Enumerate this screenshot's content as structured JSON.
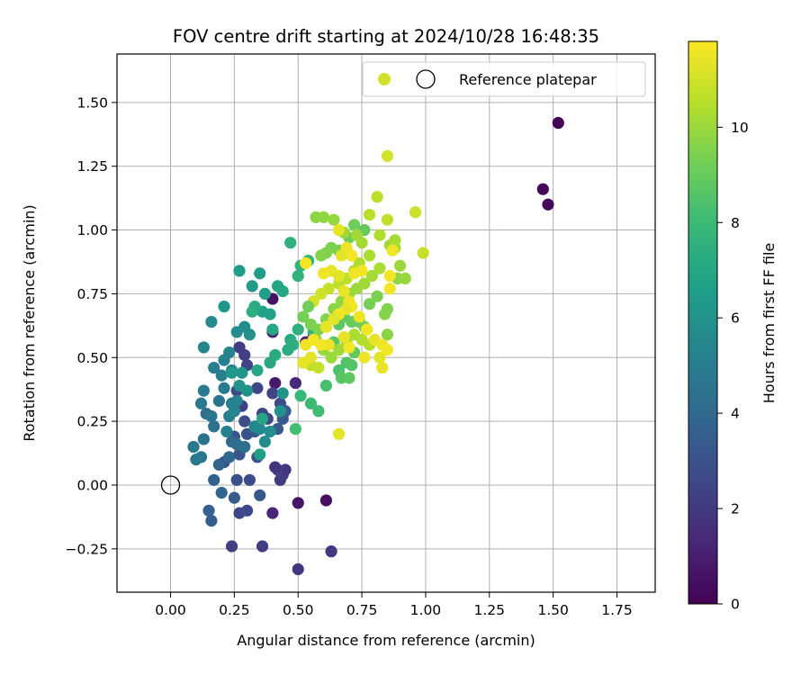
{
  "chart_data": {
    "type": "scatter",
    "title": "FOV centre drift starting at 2024/10/28 16:48:35",
    "xlabel": "Angular distance from reference (arcmin)",
    "ylabel": "Rotation from reference (arcmin)",
    "xlim": [
      -0.21,
      1.9
    ],
    "ylim": [
      -0.42,
      1.69
    ],
    "xticks": [
      "0.00",
      "0.25",
      "0.50",
      "0.75",
      "1.00",
      "1.25",
      "1.50",
      "1.75"
    ],
    "xtick_values": [
      0,
      0.25,
      0.5,
      0.75,
      1.0,
      1.25,
      1.5,
      1.75
    ],
    "yticks": [
      "−0.25",
      "0.00",
      "0.25",
      "0.50",
      "0.75",
      "1.00",
      "1.25",
      "1.50"
    ],
    "ytick_values": [
      -0.25,
      0,
      0.25,
      0.5,
      0.75,
      1.0,
      1.25,
      1.5
    ],
    "grid": true,
    "legend_position": "top-right",
    "colormap": "viridis",
    "colorbar": {
      "label": "Hours from first FF file",
      "min": 0,
      "max": 11.8,
      "ticks": [
        "0",
        "2",
        "4",
        "6",
        "8",
        "10"
      ],
      "tick_values": [
        0,
        2,
        4,
        6,
        8,
        10
      ]
    },
    "reference_point": {
      "label": "Reference platepar",
      "x": 0.0,
      "y": 0.0
    },
    "series": [
      {
        "points": [
          [
            1.52,
            1.42,
            0.1
          ],
          [
            1.46,
            1.16,
            0.2
          ],
          [
            1.48,
            1.1,
            0.3
          ],
          [
            0.61,
            -0.06,
            0.5
          ],
          [
            0.5,
            -0.07,
            0.7
          ],
          [
            0.4,
            0.73,
            0.6
          ],
          [
            0.41,
            0.4,
            0.8
          ],
          [
            0.56,
            0.58,
            0.9
          ],
          [
            0.53,
            0.56,
            1.0
          ],
          [
            0.4,
            -0.11,
            1.2
          ],
          [
            0.4,
            0.6,
            1.1
          ],
          [
            0.49,
            0.4,
            1.3
          ],
          [
            0.5,
            -0.33,
            1.9
          ],
          [
            0.63,
            -0.26,
            2.0
          ],
          [
            0.36,
            -0.24,
            2.1
          ],
          [
            0.24,
            -0.24,
            2.2
          ],
          [
            0.43,
            0.02,
            2.0
          ],
          [
            0.44,
            0.04,
            2.1
          ],
          [
            0.45,
            0.06,
            1.9
          ],
          [
            0.42,
            0.06,
            2.3
          ],
          [
            0.41,
            0.07,
            1.8
          ],
          [
            0.27,
            0.54,
            2.1
          ],
          [
            0.29,
            0.51,
            2.2
          ],
          [
            0.3,
            0.47,
            2.4
          ],
          [
            0.34,
            0.38,
            2.5
          ],
          [
            0.26,
            0.37,
            2.6
          ],
          [
            0.28,
            0.31,
            2.3
          ],
          [
            0.36,
            0.28,
            2.5
          ],
          [
            0.4,
            0.36,
            2.4
          ],
          [
            0.43,
            0.32,
            2.7
          ],
          [
            0.38,
            0.26,
            2.6
          ],
          [
            0.29,
            0.25,
            2.8
          ],
          [
            0.27,
            -0.11,
            2.5
          ],
          [
            0.3,
            -0.1,
            2.6
          ],
          [
            0.31,
            0.02,
            2.7
          ],
          [
            0.26,
            0.02,
            2.9
          ],
          [
            0.21,
            0.09,
            3.0
          ],
          [
            0.27,
            0.12,
            3.1
          ],
          [
            0.34,
            0.11,
            2.9
          ],
          [
            0.3,
            0.2,
            3.0
          ],
          [
            0.25,
            0.19,
            3.1
          ],
          [
            0.33,
            0.21,
            3.2
          ],
          [
            0.42,
            0.22,
            3.3
          ],
          [
            0.44,
            0.26,
            3.2
          ],
          [
            0.45,
            0.29,
            3.4
          ],
          [
            0.35,
            -0.04,
            3.3
          ],
          [
            0.25,
            -0.05,
            3.4
          ],
          [
            0.16,
            -0.14,
            3.5
          ],
          [
            0.15,
            -0.1,
            3.6
          ],
          [
            0.17,
            0.02,
            3.7
          ],
          [
            0.19,
            0.08,
            3.8
          ],
          [
            0.2,
            -0.03,
            3.9
          ],
          [
            0.23,
            0.11,
            4.0
          ],
          [
            0.24,
            0.17,
            4.1
          ],
          [
            0.26,
            0.16,
            4.2
          ],
          [
            0.29,
            0.15,
            4.3
          ],
          [
            0.13,
            0.18,
            4.4
          ],
          [
            0.12,
            0.11,
            4.6
          ],
          [
            0.1,
            0.1,
            4.8
          ],
          [
            0.09,
            0.15,
            4.7
          ],
          [
            0.14,
            0.28,
            4.3
          ],
          [
            0.16,
            0.27,
            4.5
          ],
          [
            0.17,
            0.23,
            4.4
          ],
          [
            0.19,
            0.33,
            4.5
          ],
          [
            0.12,
            0.32,
            4.7
          ],
          [
            0.13,
            0.37,
            4.8
          ],
          [
            0.21,
            0.38,
            4.9
          ],
          [
            0.24,
            0.32,
            5.0
          ],
          [
            0.23,
            0.27,
            5.1
          ],
          [
            0.22,
            0.21,
            5.2
          ],
          [
            0.26,
            0.33,
            5.3
          ],
          [
            0.25,
            0.29,
            5.4
          ],
          [
            0.17,
            0.46,
            5.0
          ],
          [
            0.2,
            0.43,
            5.1
          ],
          [
            0.21,
            0.49,
            5.2
          ],
          [
            0.23,
            0.52,
            5.3
          ],
          [
            0.24,
            0.45,
            5.4
          ],
          [
            0.13,
            0.54,
            5.5
          ],
          [
            0.16,
            0.64,
            5.6
          ],
          [
            0.26,
            0.6,
            5.7
          ],
          [
            0.29,
            0.62,
            5.8
          ],
          [
            0.31,
            0.59,
            5.9
          ],
          [
            0.33,
            0.23,
            5.5
          ],
          [
            0.35,
            0.22,
            5.6
          ],
          [
            0.37,
            0.17,
            5.7
          ],
          [
            0.39,
            0.21,
            5.8
          ],
          [
            0.43,
            0.29,
            5.9
          ],
          [
            0.44,
            0.36,
            6.0
          ],
          [
            0.3,
            0.37,
            6.0
          ],
          [
            0.27,
            0.39,
            6.1
          ],
          [
            0.28,
            0.44,
            6.2
          ],
          [
            0.24,
            0.44,
            6.3
          ],
          [
            0.21,
            0.7,
            6.2
          ],
          [
            0.27,
            0.84,
            6.4
          ],
          [
            0.35,
            0.83,
            6.5
          ],
          [
            0.37,
            0.75,
            6.6
          ],
          [
            0.32,
            0.78,
            6.4
          ],
          [
            0.36,
            0.68,
            6.7
          ],
          [
            0.39,
            0.67,
            6.8
          ],
          [
            0.42,
            0.78,
            6.9
          ],
          [
            0.44,
            0.76,
            7.0
          ],
          [
            0.4,
            0.61,
            7.1
          ],
          [
            0.47,
            0.57,
            7.2
          ],
          [
            0.35,
            0.12,
            6.6
          ],
          [
            0.36,
            0.26,
            6.9
          ],
          [
            0.34,
            0.45,
            7.0
          ],
          [
            0.39,
            0.48,
            7.1
          ],
          [
            0.41,
            0.51,
            7.2
          ],
          [
            0.33,
            0.7,
            7.3
          ],
          [
            0.32,
            0.68,
            7.4
          ],
          [
            0.47,
            0.95,
            7.5
          ],
          [
            0.5,
            0.82,
            7.6
          ],
          [
            0.51,
            0.86,
            7.6
          ],
          [
            0.54,
            0.88,
            7.7
          ],
          [
            0.46,
            0.53,
            7.3
          ],
          [
            0.48,
            0.55,
            7.4
          ],
          [
            0.5,
            0.61,
            7.5
          ],
          [
            0.56,
            0.6,
            7.6
          ],
          [
            0.51,
            0.35,
            7.9
          ],
          [
            0.55,
            0.32,
            8.0
          ],
          [
            0.58,
            0.29,
            8.1
          ],
          [
            0.49,
            0.22,
            8.2
          ],
          [
            0.61,
            0.39,
            8.3
          ],
          [
            0.66,
            0.45,
            8.4
          ],
          [
            0.69,
            0.48,
            8.5
          ],
          [
            0.71,
            0.47,
            8.6
          ],
          [
            0.67,
            0.42,
            8.7
          ],
          [
            0.7,
            0.42,
            8.8
          ],
          [
            0.72,
            0.52,
            8.9
          ],
          [
            0.64,
            0.56,
            8.7
          ],
          [
            0.66,
            0.63,
            8.8
          ],
          [
            0.68,
            0.66,
            8.9
          ],
          [
            0.71,
            0.64,
            9.0
          ],
          [
            0.74,
            0.64,
            9.1
          ],
          [
            0.76,
            0.62,
            9.2
          ],
          [
            0.78,
            0.71,
            9.3
          ],
          [
            0.81,
            0.74,
            9.4
          ],
          [
            0.85,
            0.69,
            9.5
          ],
          [
            0.84,
            0.67,
            9.6
          ],
          [
            0.85,
            0.59,
            9.7
          ],
          [
            0.89,
            0.81,
            9.8
          ],
          [
            0.92,
            0.81,
            9.9
          ],
          [
            0.9,
            0.86,
            10.0
          ],
          [
            0.86,
            0.94,
            10.1
          ],
          [
            0.88,
            0.96,
            10.2
          ],
          [
            0.88,
            0.93,
            10.3
          ],
          [
            0.82,
            0.98,
            10.4
          ],
          [
            0.78,
            1.06,
            10.5
          ],
          [
            0.81,
            1.13,
            10.6
          ],
          [
            0.85,
            1.04,
            10.7
          ],
          [
            0.99,
            0.91,
            10.8
          ],
          [
            0.96,
            1.07,
            10.9
          ],
          [
            0.85,
            1.29,
            11.0
          ],
          [
            0.76,
            1.0,
            9.0
          ],
          [
            0.72,
            1.02,
            9.1
          ],
          [
            0.7,
            0.97,
            9.2
          ],
          [
            0.66,
            0.92,
            9.3
          ],
          [
            0.63,
            0.93,
            9.4
          ],
          [
            0.61,
            0.91,
            9.5
          ],
          [
            0.59,
            0.9,
            9.6
          ],
          [
            0.57,
            1.05,
            9.7
          ],
          [
            0.6,
            1.05,
            9.8
          ],
          [
            0.64,
            1.04,
            9.9
          ],
          [
            0.68,
            0.99,
            10.0
          ],
          [
            0.73,
            0.98,
            10.1
          ],
          [
            0.75,
            0.95,
            10.2
          ],
          [
            0.78,
            0.9,
            10.3
          ],
          [
            0.74,
            0.87,
            10.4
          ],
          [
            0.72,
            0.84,
            10.5
          ],
          [
            0.69,
            0.81,
            10.6
          ],
          [
            0.66,
            0.79,
            10.7
          ],
          [
            0.62,
            0.77,
            10.8
          ],
          [
            0.59,
            0.75,
            10.9
          ],
          [
            0.56,
            0.72,
            11.0
          ],
          [
            0.54,
            0.7,
            9.2
          ],
          [
            0.52,
            0.66,
            9.3
          ],
          [
            0.55,
            0.63,
            9.4
          ],
          [
            0.58,
            0.61,
            9.5
          ],
          [
            0.61,
            0.65,
            9.6
          ],
          [
            0.64,
            0.69,
            9.7
          ],
          [
            0.67,
            0.72,
            9.8
          ],
          [
            0.7,
            0.75,
            9.9
          ],
          [
            0.73,
            0.77,
            10.0
          ],
          [
            0.76,
            0.79,
            10.1
          ],
          [
            0.79,
            0.82,
            10.2
          ],
          [
            0.82,
            0.85,
            10.3
          ],
          [
            0.57,
            0.57,
            9.8
          ],
          [
            0.6,
            0.53,
            9.9
          ],
          [
            0.63,
            0.5,
            10.0
          ],
          [
            0.66,
            0.53,
            10.1
          ],
          [
            0.69,
            0.56,
            10.2
          ],
          [
            0.72,
            0.59,
            10.3
          ],
          [
            0.75,
            0.57,
            10.4
          ],
          [
            0.78,
            0.55,
            10.5
          ],
          [
            0.52,
            0.48,
            10.6
          ],
          [
            0.55,
            0.47,
            10.7
          ],
          [
            0.58,
            0.46,
            10.8
          ],
          [
            0.66,
            1.0,
            11.4
          ],
          [
            0.69,
            0.93,
            11.5
          ],
          [
            0.71,
            0.9,
            11.6
          ],
          [
            0.67,
            0.9,
            11.3
          ],
          [
            0.63,
            0.84,
            11.4
          ],
          [
            0.6,
            0.83,
            11.5
          ],
          [
            0.53,
            0.87,
            11.6
          ],
          [
            0.72,
            0.83,
            11.5
          ],
          [
            0.75,
            0.84,
            11.6
          ],
          [
            0.66,
            0.82,
            11.3
          ],
          [
            0.68,
            0.76,
            11.4
          ],
          [
            0.7,
            0.72,
            11.5
          ],
          [
            0.71,
            0.7,
            11.6
          ],
          [
            0.69,
            0.69,
            11.4
          ],
          [
            0.66,
            0.67,
            11.5
          ],
          [
            0.64,
            0.65,
            11.3
          ],
          [
            0.61,
            0.62,
            11.4
          ],
          [
            0.74,
            0.66,
            11.5
          ],
          [
            0.77,
            0.61,
            11.6
          ],
          [
            0.8,
            0.57,
            11.4
          ],
          [
            0.83,
            0.55,
            11.5
          ],
          [
            0.85,
            0.53,
            11.6
          ],
          [
            0.82,
            0.5,
            11.3
          ],
          [
            0.83,
            0.46,
            11.4
          ],
          [
            0.76,
            0.5,
            11.5
          ],
          [
            0.7,
            0.54,
            11.6
          ],
          [
            0.68,
            0.58,
            11.4
          ],
          [
            0.62,
            0.55,
            11.5
          ],
          [
            0.59,
            0.55,
            11.6
          ],
          [
            0.55,
            0.5,
            11.3
          ],
          [
            0.52,
            0.48,
            11.4
          ],
          [
            0.53,
            0.55,
            11.5
          ],
          [
            0.56,
            0.57,
            11.6
          ],
          [
            0.66,
            0.2,
            11.3
          ],
          [
            0.86,
            0.77,
            11.6
          ],
          [
            0.87,
            0.92,
            11.5
          ],
          [
            0.86,
            0.82,
            11.6
          ]
        ]
      }
    ]
  }
}
